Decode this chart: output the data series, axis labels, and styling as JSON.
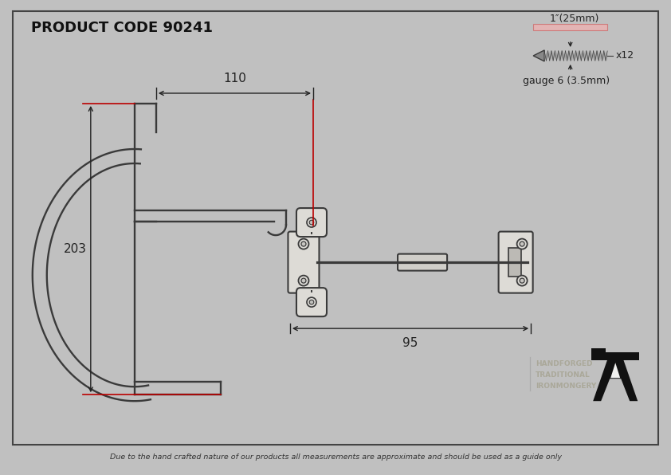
{
  "title": "PRODUCT CODE 90241",
  "bg_color": "#f0f0ee",
  "border_color": "#555555",
  "drawing_color": "#3a3a3a",
  "dim_color": "#222222",
  "red_color": "#bb0000",
  "footer_text": "Due to the hand crafted nature of our products all measurements are approximate and should be used as a guide only",
  "dim_110": "110",
  "dim_203": "203",
  "dim_95": "95",
  "screw_label": "1″(25mm)",
  "screw_count": "x12",
  "screw_gauge": "gauge 6 (3.5mm)",
  "brand_line1": "HANDFORGED",
  "brand_line2": "TRADITIONAL",
  "brand_line3": "IRONMONGERY"
}
